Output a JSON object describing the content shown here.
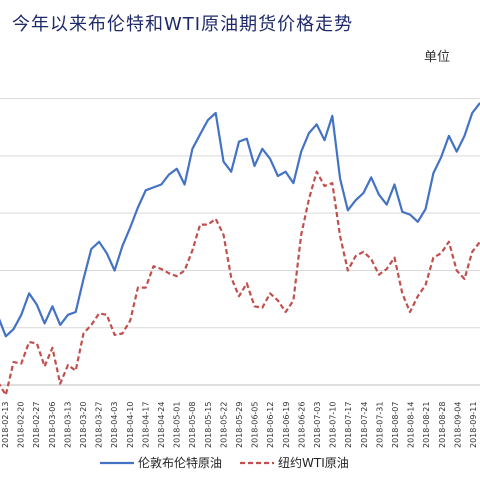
{
  "chart_data": {
    "type": "line",
    "title": "今年以来布伦特和WTI原油期货价格走势",
    "unit_label": "单位",
    "x": [
      "2018-02-09",
      "2018-02-13",
      "2018-02-16",
      "2018-02-21",
      "2018-02-23",
      "2018-02-27",
      "2018-03-01",
      "2018-03-06",
      "2018-03-08",
      "2018-03-13",
      "2018-03-15",
      "2018-03-20",
      "2018-03-22",
      "2018-03-27",
      "2018-03-29",
      "2018-04-03",
      "2018-04-05",
      "2018-04-10",
      "2018-04-12",
      "2018-04-17",
      "2018-04-19",
      "2018-04-24",
      "2018-04-26",
      "2018-05-01",
      "2018-05-03",
      "2018-05-08",
      "2018-05-10",
      "2018-05-15",
      "2018-05-17",
      "2018-05-22",
      "2018-05-24",
      "2018-05-29",
      "2018-05-31",
      "2018-06-05",
      "2018-06-07",
      "2018-06-12",
      "2018-06-14",
      "2018-06-19",
      "2018-06-21",
      "2018-06-26",
      "2018-06-28",
      "2018-07-03",
      "2018-07-05",
      "2018-07-10",
      "2018-07-12",
      "2018-07-17",
      "2018-07-19",
      "2018-07-24",
      "2018-07-26",
      "2018-07-31",
      "2018-08-02",
      "2018-08-07",
      "2018-08-09",
      "2018-08-14",
      "2018-08-16",
      "2018-08-21",
      "2018-08-23",
      "2018-08-28",
      "2018-08-30",
      "2018-09-04",
      "2018-09-06",
      "2018-09-11",
      "2018-09-13"
    ],
    "x_tick_labels": [
      "2018-02-13",
      "2018-02-20",
      "2018-02-27",
      "2018-03-06",
      "2018-03-13",
      "2018-03-20",
      "2018-03-27",
      "2018-04-03",
      "2018-04-10",
      "2018-04-17",
      "2018-04-24",
      "2018-05-01",
      "2018-05-08",
      "2018-05-15",
      "2018-05-22",
      "2018-05-29",
      "2018-06-05",
      "2018-06-12",
      "2018-06-19",
      "2018-06-26",
      "2018-07-03",
      "2018-07-10",
      "2018-07-17",
      "2018-07-24",
      "2018-07-31",
      "2018-08-07",
      "2018-08-14",
      "2018-08-21",
      "2018-08-28",
      "2018-09-04",
      "2018-09-11"
    ],
    "ylim": [
      60,
      82
    ],
    "grid": true,
    "legend_position": "bottom",
    "series": [
      {
        "name": "伦敦布伦特原油",
        "color": "#4472c4",
        "style": "solid",
        "values": [
          64.8,
          63.4,
          63.9,
          64.9,
          66.4,
          65.6,
          64.3,
          65.5,
          64.2,
          64.9,
          65.1,
          67.4,
          69.5,
          70.0,
          69.2,
          68.0,
          69.7,
          71.0,
          72.4,
          73.6,
          73.8,
          74.0,
          74.7,
          75.1,
          74.0,
          76.5,
          77.5,
          78.5,
          79.0,
          75.6,
          74.9,
          77.0,
          77.2,
          75.3,
          76.5,
          75.8,
          74.6,
          74.9,
          74.1,
          76.3,
          77.6,
          78.2,
          77.1,
          78.8,
          74.4,
          72.2,
          72.9,
          73.4,
          74.5,
          73.3,
          72.6,
          74.0,
          72.1,
          71.9,
          71.4,
          72.3,
          74.8,
          75.9,
          77.4,
          76.3,
          77.4,
          79.0,
          79.7
        ]
      },
      {
        "name": "纽约WTI原油",
        "color": "#c0504d",
        "style": "dashed",
        "values": [
          60.2,
          59.3,
          61.6,
          61.5,
          63.0,
          62.9,
          61.3,
          62.6,
          60.1,
          61.4,
          61.0,
          63.6,
          64.2,
          65.0,
          64.9,
          63.5,
          63.6,
          64.5,
          66.8,
          66.8,
          68.3,
          68.1,
          67.8,
          67.6,
          68.0,
          69.4,
          71.2,
          71.2,
          71.6,
          70.5,
          67.5,
          66.2,
          67.1,
          65.5,
          65.4,
          66.4,
          65.9,
          65.1,
          65.9,
          70.5,
          73.0,
          74.9,
          73.9,
          74.1,
          70.4,
          68.0,
          69.0,
          69.3,
          68.8,
          67.7,
          68.1,
          68.9,
          66.4,
          65.1,
          66.2,
          67.0,
          68.9,
          69.2,
          70.0,
          68.0,
          67.4,
          69.3,
          70.0
        ]
      }
    ]
  }
}
